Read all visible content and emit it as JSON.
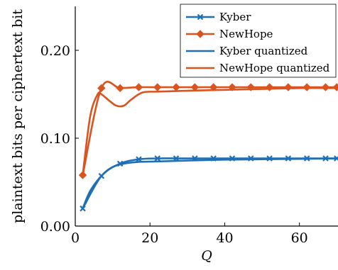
{
  "chart_data": {
    "type": "line",
    "xlabel": "Q",
    "ylabel": "plaintext bits per ciphertext bit",
    "xlim": [
      0,
      70
    ],
    "ylim": [
      0,
      0.25
    ],
    "x_ticks": [
      0,
      20,
      40,
      60
    ],
    "x_tick_labels": [
      "0",
      "20",
      "40",
      "60"
    ],
    "y_ticks": [
      0,
      0.1,
      0.2
    ],
    "y_tick_labels": [
      "0.00",
      "0.10",
      "0.20"
    ],
    "grid": false,
    "legend_position": "top-right",
    "series": [
      {
        "name": "Kyber",
        "color": "#1F6FB5",
        "marker": "x",
        "x": [
          2,
          7,
          12,
          17,
          22,
          27,
          32,
          37,
          42,
          47,
          52,
          57,
          62,
          67,
          70
        ],
        "y": [
          0.02,
          0.057,
          0.071,
          0.076,
          0.077,
          0.077,
          0.077,
          0.077,
          0.077,
          0.077,
          0.077,
          0.077,
          0.077,
          0.077,
          0.077
        ]
      },
      {
        "name": "NewHope",
        "color": "#D9541E",
        "marker": "diamond",
        "x": [
          2,
          7,
          12,
          17,
          22,
          27,
          32,
          37,
          42,
          47,
          52,
          57,
          62,
          67,
          70
        ],
        "y": [
          0.058,
          0.157,
          0.157,
          0.158,
          0.158,
          0.158,
          0.158,
          0.158,
          0.158,
          0.158,
          0.158,
          0.158,
          0.158,
          0.158,
          0.158
        ]
      },
      {
        "name": "Kyber quantized",
        "color": "#1F6FB5",
        "marker": "none",
        "x": [
          2,
          4,
          7,
          10,
          13,
          17,
          22,
          30,
          40,
          50,
          60,
          70
        ],
        "y": [
          0.02,
          0.04,
          0.057,
          0.067,
          0.071,
          0.073,
          0.0735,
          0.0745,
          0.0755,
          0.076,
          0.0765,
          0.077
        ]
      },
      {
        "name": "NewHope quantized",
        "color": "#D9541E",
        "marker": "none",
        "x": [
          2,
          4,
          6,
          7,
          9,
          11,
          13,
          15,
          18,
          22,
          30,
          40,
          50,
          60,
          70
        ],
        "y": [
          0.058,
          0.125,
          0.15,
          0.15,
          0.143,
          0.137,
          0.137,
          0.144,
          0.152,
          0.153,
          0.154,
          0.155,
          0.156,
          0.157,
          0.157
        ]
      }
    ]
  }
}
